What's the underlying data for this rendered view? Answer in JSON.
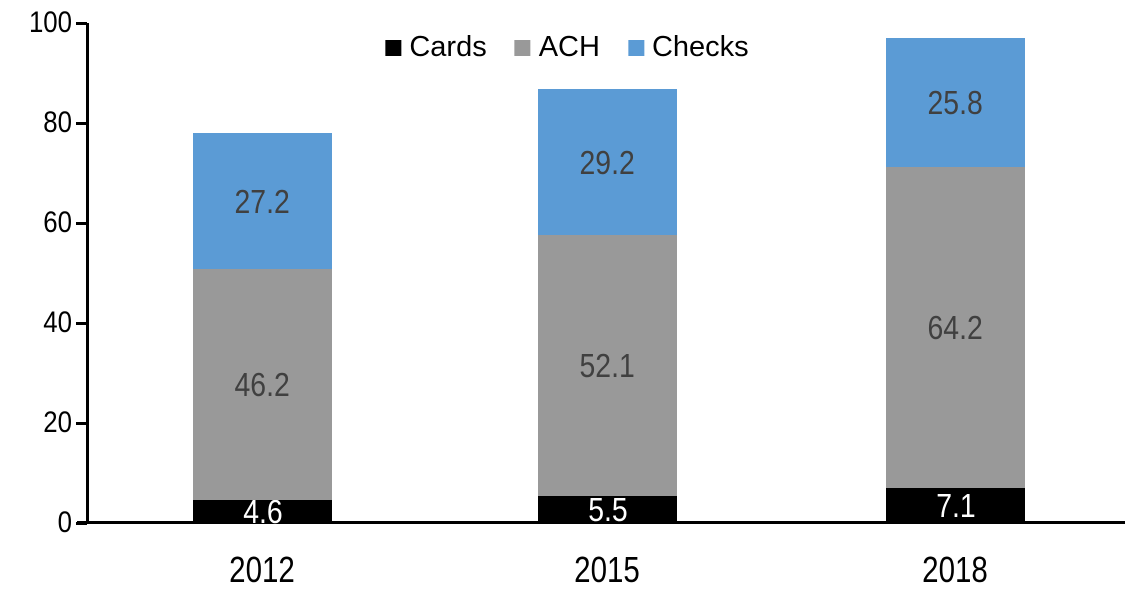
{
  "chart_data": {
    "type": "bar",
    "variant": "stacked-column",
    "title": "",
    "xlabel": "",
    "ylabel": "",
    "categories": [
      "2012",
      "2015",
      "2018"
    ],
    "series": [
      {
        "name": "Cards",
        "color": "#000000",
        "label_color": "#FFFFFF",
        "values": [
          4.6,
          5.5,
          7.1
        ]
      },
      {
        "name": "ACH",
        "color": "#999999",
        "label_color": "#404040",
        "values": [
          46.2,
          52.1,
          64.2
        ]
      },
      {
        "name": "Checks",
        "color": "#5B9BD5",
        "label_color": "#404040",
        "values": [
          27.2,
          29.2,
          25.8
        ]
      }
    ],
    "ylim": [
      0,
      100
    ],
    "y_ticks": [
      0,
      20,
      40,
      60,
      80,
      100
    ],
    "grid": false,
    "legend_position": "top-center",
    "axis_color": "#000000",
    "background_color": "#FFFFFF",
    "value_labels_shown": true,
    "value_label_decimals": 1
  }
}
